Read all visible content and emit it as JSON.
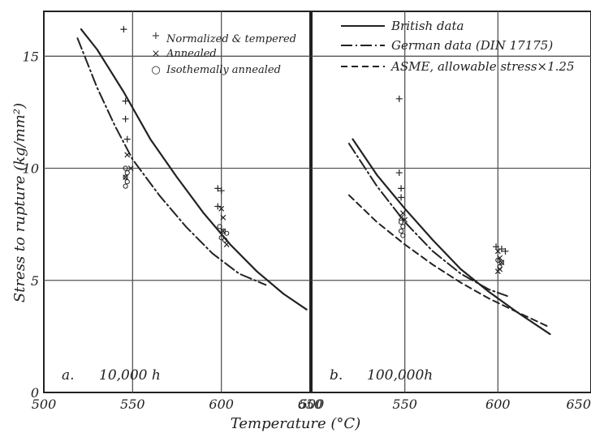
{
  "chart_data": [
    {
      "type": "line",
      "panel": "a.",
      "annotation": "10,000 h",
      "xlabel": "Temperature (°C)",
      "ylabel": "Stress to rupture (kg/mm²)",
      "xlim": [
        500,
        650
      ],
      "ylim": [
        0,
        17
      ],
      "xticks": [
        "500",
        "550",
        "600",
        "650"
      ],
      "yticks": [
        "0",
        "5",
        "10",
        "15"
      ],
      "grid": true,
      "legend_position": "top-right",
      "legend": [
        {
          "symbol": "+",
          "label": "Normalized & tempered"
        },
        {
          "symbol": "×",
          "label": "Annealed"
        },
        {
          "symbol": "○",
          "label": "Isothemally annealed"
        }
      ],
      "series": [
        {
          "style": "solid",
          "x": [
            521,
            530,
            545,
            560,
            575,
            590,
            605,
            620,
            635,
            648
          ],
          "y": [
            16.2,
            15.3,
            13.4,
            11.3,
            9.6,
            8.0,
            6.6,
            5.4,
            4.4,
            3.7
          ]
        },
        {
          "style": "dash-dot",
          "x": [
            519,
            530,
            540,
            550,
            565,
            580,
            595,
            610,
            625
          ],
          "y": [
            15.8,
            13.6,
            11.9,
            10.4,
            8.8,
            7.4,
            6.2,
            5.3,
            4.8
          ]
        }
      ],
      "points": {
        "normalized_tempered": [
          [
            545,
            16.2
          ],
          [
            546,
            13.0
          ],
          [
            546,
            12.2
          ],
          [
            547,
            11.3
          ],
          [
            598,
            9.1
          ],
          [
            598,
            8.3
          ],
          [
            600,
            9.0
          ]
        ],
        "annealed": [
          [
            547,
            10.6
          ],
          [
            549,
            10.0
          ],
          [
            546,
            9.6
          ],
          [
            600,
            8.2
          ],
          [
            601,
            7.8
          ],
          [
            601,
            7.2
          ],
          [
            603,
            6.6
          ]
        ],
        "isothermally_annealed": [
          [
            546,
            10.0
          ],
          [
            547,
            9.8
          ],
          [
            546,
            9.6
          ],
          [
            547,
            9.4
          ],
          [
            546,
            9.2
          ],
          [
            599,
            7.4
          ],
          [
            601,
            7.2
          ],
          [
            603,
            7.1
          ],
          [
            600,
            6.9
          ],
          [
            602,
            6.8
          ]
        ]
      }
    },
    {
      "type": "line",
      "panel": "b.",
      "annotation": "100,000h",
      "xlabel": "Temperature (°C)",
      "xlim": [
        500,
        650
      ],
      "ylim": [
        0,
        17
      ],
      "xticks": [
        "500",
        "550",
        "600",
        "650"
      ],
      "grid": true,
      "legend_position": "top-right",
      "legend": [
        {
          "style": "solid",
          "label": "British data"
        },
        {
          "style": "dash-dot",
          "label": "German data (DIN 17175)"
        },
        {
          "style": "dashed",
          "label": "ASME, allowable stress×1.25"
        }
      ],
      "series": [
        {
          "style": "solid",
          "x": [
            522,
            535,
            550,
            565,
            580,
            595,
            610,
            628
          ],
          "y": [
            11.3,
            9.7,
            8.2,
            6.8,
            5.5,
            4.5,
            3.6,
            2.6
          ]
        },
        {
          "style": "dash-dot",
          "x": [
            520,
            535,
            550,
            565,
            580,
            595,
            605
          ],
          "y": [
            11.1,
            9.2,
            7.6,
            6.3,
            5.3,
            4.6,
            4.3
          ]
        },
        {
          "style": "dashed",
          "x": [
            520,
            535,
            550,
            565,
            580,
            595,
            610,
            628
          ],
          "y": [
            8.8,
            7.6,
            6.6,
            5.7,
            4.9,
            4.2,
            3.6,
            2.9
          ]
        }
      ],
      "points": {
        "normalized_tempered": [
          [
            547,
            13.1
          ],
          [
            547,
            9.8
          ],
          [
            548,
            9.1
          ],
          [
            548,
            8.7
          ],
          [
            599,
            6.5
          ],
          [
            602,
            6.4
          ],
          [
            604,
            6.3
          ]
        ],
        "annealed": [
          [
            549,
            8.0
          ],
          [
            548,
            7.8
          ],
          [
            550,
            7.7
          ],
          [
            600,
            6.3
          ],
          [
            601,
            6.0
          ],
          [
            602,
            5.8
          ],
          [
            601,
            5.5
          ],
          [
            600,
            5.4
          ]
        ],
        "isothermally_annealed": [
          [
            548,
            7.6
          ],
          [
            549,
            7.4
          ],
          [
            548,
            7.2
          ],
          [
            549,
            7.0
          ],
          [
            600,
            5.9
          ],
          [
            602,
            5.8
          ],
          [
            601,
            5.6
          ]
        ]
      }
    }
  ]
}
